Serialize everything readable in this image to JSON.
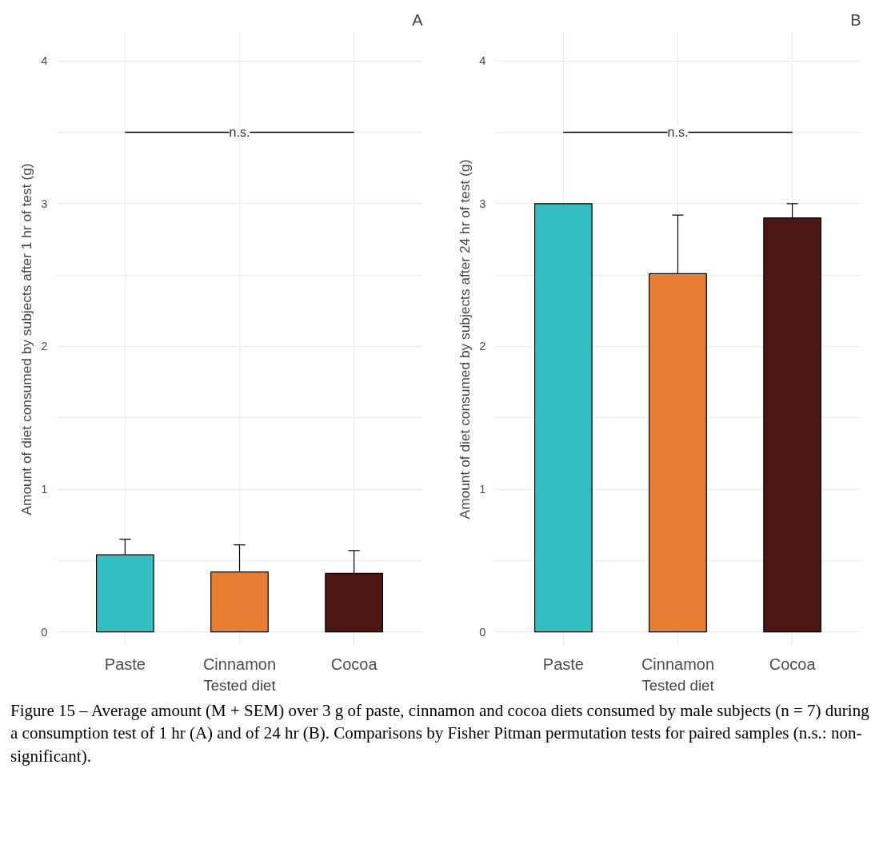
{
  "chart_data": [
    {
      "type": "bar",
      "title": "A",
      "xlabel": "Tested diet",
      "ylabel": "Amount of diet consumed by subjects after 1 hr of test (g)",
      "categories": [
        "Paste",
        "Cinnamon",
        "Cocoa"
      ],
      "values": [
        0.54,
        0.42,
        0.41
      ],
      "colors": [
        "#35bec2",
        "#e67e33",
        "#4c1710"
      ],
      "errors": [
        [
          0.54,
          0.65
        ],
        [
          0.42,
          0.61
        ],
        [
          0.41,
          0.57
        ]
      ],
      "ylim": [
        -0.1,
        4.2
      ],
      "yticks": [
        0,
        {
          "value": 0.5,
          "label": null
        },
        1,
        {
          "value": 1.5,
          "label": null
        },
        2,
        {
          "value": 2.5,
          "label": null
        },
        3,
        {
          "value": 3.5,
          "label": null
        },
        4
      ],
      "grid": true,
      "annotations": [
        {
          "text": "n.s.",
          "x": "Cinnamon",
          "y": 3.5
        }
      ]
    },
    {
      "type": "bar",
      "title": "B",
      "xlabel": "Tested diet",
      "ylabel": "Amount of diet consumed by subjects after 24 hr of test (g)",
      "categories": [
        "Paste",
        "Cinnamon",
        "Cocoa"
      ],
      "values": [
        3.0,
        2.51,
        2.9
      ],
      "colors": [
        "#35bec2",
        "#e67e33",
        "#4c1710"
      ],
      "errors": [
        null,
        [
          2.51,
          2.92
        ],
        [
          2.9,
          3.0
        ]
      ],
      "ylim": [
        -0.1,
        4.2
      ],
      "yticks": [
        0,
        {
          "value": 0.5,
          "label": null
        },
        1,
        {
          "value": 1.5,
          "label": null
        },
        2,
        {
          "value": 2.5,
          "label": null
        },
        3,
        {
          "value": 3.5,
          "label": null
        },
        4
      ],
      "grid": true,
      "annotations": [
        {
          "text": "n.s.",
          "x": "Cinnamon",
          "y": 3.5
        },
        "Figure 15 – Average amount (M + SEM) over 3 g of paste, cinnamon and cocoa diets consumed by male subjects (n = 7) during a consumption test of 1 hr (A) and of 24 hr (B). Comparisons by Fisher Pitman permutation tests for paired samples (n.s.: non-significant)."
      ]
    }
  ]
}
